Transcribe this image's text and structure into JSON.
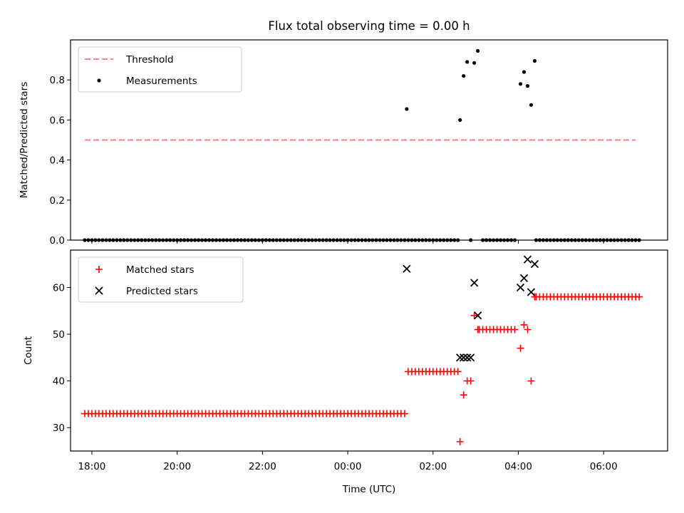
{
  "chart_data": [
    {
      "type": "scatter",
      "title": "Flux total observing time = 0.00 h",
      "xlabel": "",
      "ylabel": "Matched/Predicted stars",
      "xlim": [
        "17:30",
        "07:30"
      ],
      "ylim": [
        0,
        1.0
      ],
      "x_ticks": [
        "18:00",
        "20:00",
        "22:00",
        "00:00",
        "02:00",
        "04:00",
        "06:00"
      ],
      "y_ticks": [
        "0.0",
        "0.2",
        "0.4",
        "0.6",
        "0.8"
      ],
      "legend": {
        "position": "top-left",
        "entries": [
          "Threshold",
          "Measurements"
        ]
      },
      "series": [
        {
          "name": "Threshold",
          "style": "dashed-line",
          "color": "#ff8080",
          "points": [
            [
              "17:50",
              0.5
            ],
            [
              "06:45",
              0.5
            ]
          ]
        },
        {
          "name": "Measurements",
          "style": "dot",
          "color": "#000000",
          "zero_runs": [
            [
              "17:50",
              "01:20",
              5
            ],
            [
              "01:25",
              "02:35",
              5
            ],
            [
              "03:10",
              "03:55",
              5
            ],
            [
              "04:25",
              "06:50",
              5
            ]
          ],
          "points": [
            [
              "01:23",
              0.655
            ],
            [
              "02:38",
              0.6
            ],
            [
              "02:43",
              0.82
            ],
            [
              "02:48",
              0.89
            ],
            [
              "02:53",
              0.0
            ],
            [
              "02:58",
              0.885
            ],
            [
              "03:03",
              0.945
            ],
            [
              "04:03",
              0.78
            ],
            [
              "04:08",
              0.84
            ],
            [
              "04:13",
              0.77
            ],
            [
              "04:18",
              0.675
            ],
            [
              "04:23",
              0.895
            ]
          ]
        }
      ]
    },
    {
      "type": "scatter",
      "title": "",
      "xlabel": "Time (UTC)",
      "ylabel": "Count",
      "xlim": [
        "17:30",
        "07:30"
      ],
      "ylim": [
        25,
        68
      ],
      "x_ticks": [
        "18:00",
        "20:00",
        "22:00",
        "00:00",
        "02:00",
        "04:00",
        "06:00"
      ],
      "y_ticks": [
        "30",
        "40",
        "50",
        "60"
      ],
      "legend": {
        "position": "top-left",
        "entries": [
          "Matched stars",
          "Predicted stars"
        ]
      },
      "series": [
        {
          "name": "Matched stars",
          "style": "plus",
          "color": "#ff0000",
          "runs": [
            [
              "17:50",
              "01:20",
              5,
              33
            ],
            [
              "01:25",
              "02:35",
              5,
              42
            ],
            [
              "03:05",
              "03:55",
              5,
              51
            ],
            [
              "04:25",
              "06:50",
              5,
              58
            ]
          ],
          "points": [
            [
              "02:38",
              27
            ],
            [
              "02:43",
              37
            ],
            [
              "02:48",
              40
            ],
            [
              "02:53",
              40
            ],
            [
              "02:58",
              54
            ],
            [
              "03:03",
              51
            ],
            [
              "04:03",
              47
            ],
            [
              "04:08",
              52
            ],
            [
              "04:13",
              51
            ],
            [
              "04:18",
              40
            ],
            [
              "04:23",
              58
            ]
          ]
        },
        {
          "name": "Predicted stars",
          "style": "x",
          "color": "#000000",
          "points": [
            [
              "01:23",
              64
            ],
            [
              "02:38",
              45
            ],
            [
              "02:43",
              45
            ],
            [
              "02:48",
              45
            ],
            [
              "02:53",
              45
            ],
            [
              "02:58",
              61
            ],
            [
              "03:03",
              54
            ],
            [
              "04:03",
              60
            ],
            [
              "04:08",
              62
            ],
            [
              "04:13",
              66
            ],
            [
              "04:18",
              59
            ],
            [
              "04:23",
              65
            ]
          ]
        }
      ]
    }
  ]
}
